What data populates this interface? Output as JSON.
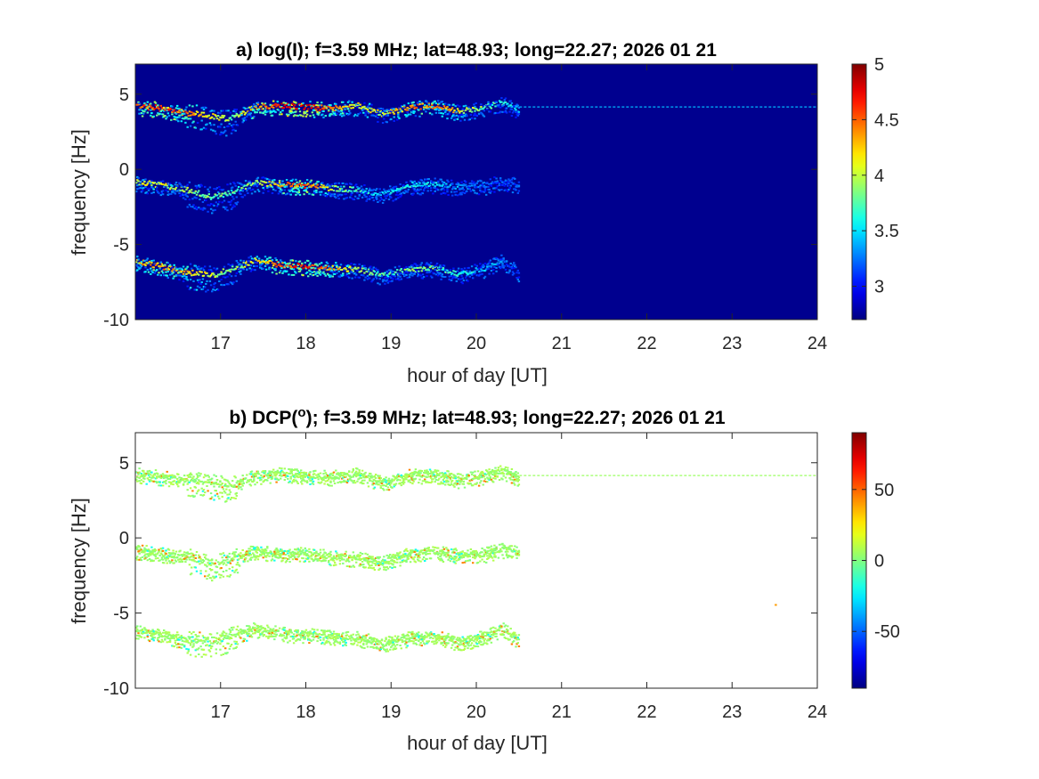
{
  "figure": {
    "background": "#ffffff"
  },
  "chart_data": [
    {
      "type": "heatmap",
      "title": "a) log(I); f=3.59 MHz;  lat=48.93; long=22.27; 2026 01 21",
      "xlabel": "hour of day [UT]",
      "ylabel": "frequency [Hz]",
      "xlim": [
        16,
        24
      ],
      "ylim": [
        -10,
        7
      ],
      "xticks": [
        17,
        18,
        19,
        20,
        21,
        22,
        23,
        24
      ],
      "xtick_labels": [
        "17",
        "18",
        "19",
        "20",
        "21",
        "22",
        "23",
        "24"
      ],
      "yticks": [
        -10,
        -5,
        0,
        5
      ],
      "ytick_labels": [
        "-10",
        "-5",
        "0",
        "5"
      ],
      "colormap": "jet",
      "background_color": "#00008f",
      "clim": [
        2.7,
        5
      ],
      "colorbar_ticks": [
        3,
        3.5,
        4,
        4.5,
        5
      ],
      "colorbar_labels": [
        "3",
        "3.5",
        "4",
        "4.5",
        "5"
      ],
      "traces": [
        {
          "name_hint": "upper",
          "x": [
            16.0,
            16.3,
            16.6,
            16.9,
            17.1,
            17.4,
            17.7,
            18.0,
            18.3,
            18.6,
            18.9,
            19.2,
            19.5,
            19.8,
            20.1,
            20.3,
            20.5
          ],
          "y": [
            4.3,
            4.1,
            3.8,
            3.6,
            3.4,
            4.2,
            4.3,
            4.2,
            4.1,
            4.3,
            3.7,
            4.2,
            4.3,
            3.9,
            4.2,
            4.5,
            4.0
          ],
          "intensity": [
            4.6,
            4.9,
            4.6,
            4.3,
            4.0,
            4.5,
            4.9,
            5.0,
            4.6,
            4.3,
            4.2,
            4.6,
            4.6,
            4.3,
            4.0,
            3.8,
            3.5
          ]
        },
        {
          "name_hint": "middle",
          "x": [
            16.0,
            16.3,
            16.6,
            16.9,
            17.1,
            17.4,
            17.7,
            18.0,
            18.3,
            18.6,
            18.9,
            19.2,
            19.5,
            19.8,
            20.1,
            20.3,
            20.5
          ],
          "y": [
            -0.8,
            -1.0,
            -1.3,
            -1.8,
            -1.5,
            -0.8,
            -1.0,
            -1.0,
            -1.2,
            -1.3,
            -1.6,
            -1.0,
            -0.9,
            -1.1,
            -1.0,
            -0.7,
            -1.0
          ],
          "intensity": [
            4.2,
            4.3,
            4.1,
            4.0,
            3.9,
            4.1,
            4.5,
            4.7,
            4.2,
            3.8,
            3.6,
            3.8,
            3.7,
            3.5,
            3.3,
            3.1,
            3.0
          ]
        },
        {
          "name_hint": "lower",
          "x": [
            16.0,
            16.3,
            16.6,
            16.9,
            17.1,
            17.4,
            17.7,
            18.0,
            18.3,
            18.6,
            18.9,
            19.2,
            19.5,
            19.8,
            20.1,
            20.3,
            20.5
          ],
          "y": [
            -6.1,
            -6.4,
            -6.8,
            -7.0,
            -6.6,
            -6.0,
            -6.3,
            -6.4,
            -6.5,
            -6.6,
            -7.0,
            -6.6,
            -6.5,
            -6.9,
            -6.5,
            -6.0,
            -6.8
          ],
          "intensity": [
            4.4,
            4.6,
            4.4,
            4.2,
            4.0,
            4.3,
            4.7,
            4.9,
            4.5,
            4.1,
            3.9,
            4.1,
            4.0,
            3.8,
            3.6,
            3.5,
            3.3
          ]
        }
      ],
      "carrier_line": {
        "y": 4.15,
        "x_range": [
          20.4,
          24
        ],
        "intensity": 3.4
      }
    },
    {
      "type": "heatmap",
      "title": "b) DCP(o); f=3.59 MHz;  lat=48.93; long=22.27; 2026 01 21",
      "title_parts": {
        "prefix": "b) DCP(",
        "superscript": "o",
        "suffix": "); f=3.59 MHz;  lat=48.93; long=22.27; 2026 01 21"
      },
      "xlabel": "hour of day [UT]",
      "ylabel": "frequency [Hz]",
      "xlim": [
        16,
        24
      ],
      "ylim": [
        -10,
        7
      ],
      "xticks": [
        17,
        18,
        19,
        20,
        21,
        22,
        23,
        24
      ],
      "xtick_labels": [
        "17",
        "18",
        "19",
        "20",
        "21",
        "22",
        "23",
        "24"
      ],
      "yticks": [
        -10,
        -5,
        0,
        5
      ],
      "ytick_labels": [
        "-10",
        "-5",
        "0",
        "5"
      ],
      "colormap": "jet",
      "background_color": "#ffffff",
      "clim": [
        -90,
        90
      ],
      "colorbar_ticks": [
        -50,
        0,
        50
      ],
      "colorbar_labels": [
        "-50",
        "0",
        "50"
      ],
      "dominant_value": 5,
      "traces": [
        {
          "name_hint": "upper",
          "x": [
            16.0,
            16.3,
            16.6,
            16.9,
            17.1,
            17.4,
            17.7,
            18.0,
            18.3,
            18.6,
            18.9,
            19.2,
            19.5,
            19.8,
            20.1,
            20.3,
            20.5
          ],
          "y": [
            4.3,
            4.1,
            3.8,
            3.6,
            3.4,
            4.2,
            4.3,
            4.2,
            4.1,
            4.3,
            3.7,
            4.2,
            4.3,
            3.9,
            4.2,
            4.5,
            4.0
          ]
        },
        {
          "name_hint": "middle",
          "x": [
            16.0,
            16.3,
            16.6,
            16.9,
            17.1,
            17.4,
            17.7,
            18.0,
            18.3,
            18.6,
            18.9,
            19.2,
            19.5,
            19.8,
            20.1,
            20.3,
            20.5
          ],
          "y": [
            -0.8,
            -1.0,
            -1.3,
            -1.8,
            -1.5,
            -0.8,
            -1.0,
            -1.0,
            -1.2,
            -1.3,
            -1.6,
            -1.0,
            -0.9,
            -1.1,
            -1.0,
            -0.7,
            -1.0
          ]
        },
        {
          "name_hint": "lower",
          "x": [
            16.0,
            16.3,
            16.6,
            16.9,
            17.1,
            17.4,
            17.7,
            18.0,
            18.3,
            18.6,
            18.9,
            19.2,
            19.5,
            19.8,
            20.1,
            20.3,
            20.5
          ],
          "y": [
            -6.1,
            -6.4,
            -6.8,
            -7.0,
            -6.6,
            -6.0,
            -6.3,
            -6.4,
            -6.5,
            -6.6,
            -7.0,
            -6.6,
            -6.5,
            -6.9,
            -6.5,
            -6.0,
            -6.8
          ]
        }
      ],
      "carrier_line": {
        "y": 4.15,
        "x_range": [
          20.4,
          24
        ],
        "value": 5
      },
      "isolated_points": [
        {
          "x": 23.5,
          "y": -4.4,
          "value": 40
        }
      ]
    }
  ]
}
